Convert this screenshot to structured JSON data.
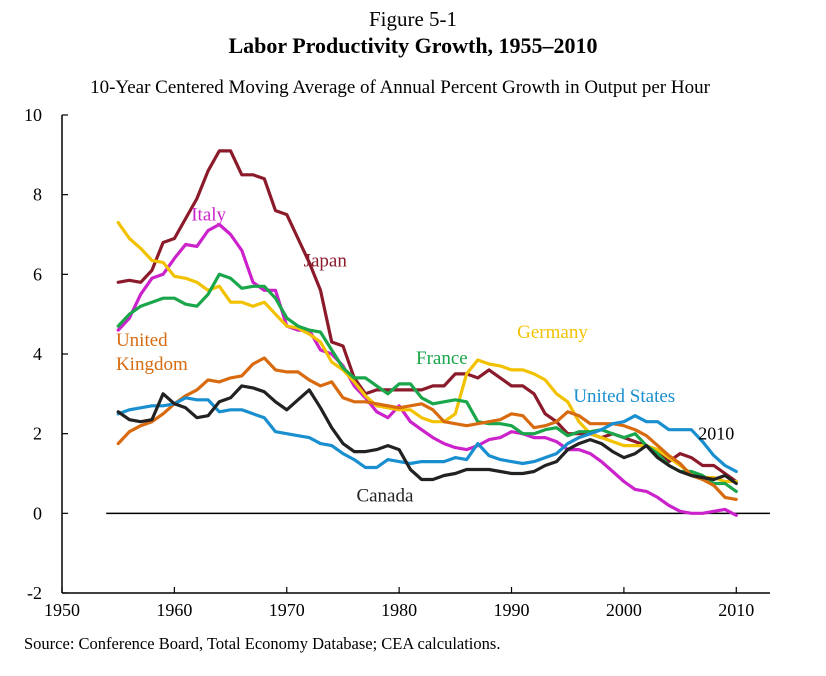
{
  "figure_label": "Figure 5-1",
  "title": "Labor Productivity Growth, 1955–2010",
  "subtitle": "10-Year Centered Moving Average of Annual Percent Growth in Output per Hour",
  "source": "Source: Conference Board, Total Economy Database; CEA calculations.",
  "chart_data": {
    "type": "line",
    "title": "Labor Productivity Growth, 1955–2010",
    "subtitle": "10-Year Centered Moving Average of Annual Percent Growth in Output per Hour",
    "xlabel": "",
    "ylabel": "",
    "xlim": [
      1950,
      2013
    ],
    "ylim": [
      -2,
      10
    ],
    "xticks": [
      1950,
      1960,
      1970,
      1980,
      1990,
      2000,
      2010
    ],
    "yticks": [
      -2,
      0,
      2,
      4,
      6,
      8,
      10
    ],
    "grid": false,
    "legend": "inline labels",
    "annotations": [
      {
        "text": "2010",
        "x": 2010,
        "y": 2.0
      }
    ],
    "series": [
      {
        "name": "Japan",
        "color": "#8b1a2b",
        "label_lines": [
          "Japan"
        ],
        "label_at": [
          1971.5,
          6.2
        ],
        "x": [
          1955,
          1956,
          1957,
          1958,
          1959,
          1960,
          1961,
          1962,
          1963,
          1964,
          1965,
          1966,
          1967,
          1968,
          1969,
          1970,
          1971,
          1972,
          1973,
          1974,
          1975,
          1976,
          1977,
          1978,
          1979,
          1980,
          1981,
          1982,
          1983,
          1984,
          1985,
          1986,
          1987,
          1988,
          1989,
          1990,
          1991,
          1992,
          1993,
          1994,
          1995,
          1996,
          1997,
          1998,
          1999,
          2000,
          2001,
          2002,
          2003,
          2004,
          2005,
          2006,
          2007,
          2008,
          2009,
          2010
        ],
        "values": [
          5.8,
          5.85,
          5.8,
          6.1,
          6.8,
          6.9,
          7.4,
          7.9,
          8.6,
          9.1,
          9.1,
          8.5,
          8.5,
          8.4,
          7.6,
          7.5,
          6.9,
          6.3,
          5.6,
          4.3,
          4.2,
          3.4,
          3.0,
          3.1,
          3.1,
          3.1,
          3.1,
          3.1,
          3.2,
          3.2,
          3.5,
          3.5,
          3.4,
          3.6,
          3.4,
          3.2,
          3.2,
          3.0,
          2.5,
          2.3,
          2.0,
          2.0,
          2.0,
          1.9,
          2.0,
          1.9,
          1.8,
          1.7,
          1.5,
          1.3,
          1.5,
          1.4,
          1.2,
          1.2,
          1.0,
          0.8
        ]
      },
      {
        "name": "Italy",
        "color": "#cc22cc",
        "label_lines": [
          "Italy"
        ],
        "label_at": [
          1961.5,
          7.35
        ],
        "x": [
          1955,
          1956,
          1957,
          1958,
          1959,
          1960,
          1961,
          1962,
          1963,
          1964,
          1965,
          1966,
          1967,
          1968,
          1969,
          1970,
          1971,
          1972,
          1973,
          1974,
          1975,
          1976,
          1977,
          1978,
          1979,
          1980,
          1981,
          1982,
          1983,
          1984,
          1985,
          1986,
          1987,
          1988,
          1989,
          1990,
          1991,
          1992,
          1993,
          1994,
          1995,
          1996,
          1997,
          1998,
          1999,
          2000,
          2001,
          2002,
          2003,
          2004,
          2005,
          2006,
          2007,
          2008,
          2009,
          2010
        ],
        "values": [
          4.6,
          4.9,
          5.5,
          5.9,
          6.0,
          6.4,
          6.75,
          6.7,
          7.1,
          7.25,
          7.0,
          6.6,
          5.8,
          5.6,
          5.6,
          4.7,
          4.6,
          4.6,
          4.1,
          4.0,
          3.7,
          3.2,
          2.9,
          2.55,
          2.4,
          2.7,
          2.3,
          2.1,
          1.9,
          1.75,
          1.65,
          1.6,
          1.7,
          1.85,
          1.9,
          2.05,
          2.0,
          1.9,
          1.9,
          1.8,
          1.6,
          1.6,
          1.5,
          1.3,
          1.05,
          0.8,
          0.6,
          0.55,
          0.4,
          0.2,
          0.05,
          0.0,
          0.0,
          0.05,
          0.1,
          -0.05
        ]
      },
      {
        "name": "Germany",
        "color": "#f2c200",
        "label_lines": [
          "Germany"
        ],
        "label_at": [
          1990.5,
          4.4
        ],
        "x": [
          1955,
          1956,
          1957,
          1958,
          1959,
          1960,
          1961,
          1962,
          1963,
          1964,
          1965,
          1966,
          1967,
          1968,
          1969,
          1970,
          1971,
          1972,
          1973,
          1974,
          1975,
          1976,
          1977,
          1978,
          1979,
          1980,
          1981,
          1982,
          1983,
          1984,
          1985,
          1986,
          1987,
          1988,
          1989,
          1990,
          1991,
          1992,
          1993,
          1994,
          1995,
          1996,
          1997,
          1998,
          1999,
          2000,
          2001,
          2002,
          2003,
          2004,
          2005,
          2006,
          2007,
          2008,
          2009,
          2010
        ],
        "values": [
          7.3,
          6.9,
          6.65,
          6.35,
          6.3,
          5.95,
          5.9,
          5.8,
          5.6,
          5.7,
          5.3,
          5.3,
          5.2,
          5.3,
          5.0,
          4.7,
          4.65,
          4.5,
          4.3,
          3.8,
          3.6,
          3.3,
          2.95,
          2.7,
          2.65,
          2.6,
          2.6,
          2.4,
          2.3,
          2.3,
          2.5,
          3.5,
          3.85,
          3.75,
          3.7,
          3.6,
          3.6,
          3.5,
          3.35,
          3.0,
          2.8,
          2.3,
          2.0,
          1.9,
          1.8,
          1.7,
          1.7,
          1.7,
          1.6,
          1.4,
          1.2,
          1.0,
          0.9,
          0.9,
          0.8,
          0.8
        ]
      },
      {
        "name": "France",
        "color": "#1aa64a",
        "label_lines": [
          "France"
        ],
        "label_at": [
          1981.5,
          3.75
        ],
        "x": [
          1955,
          1956,
          1957,
          1958,
          1959,
          1960,
          1961,
          1962,
          1963,
          1964,
          1965,
          1966,
          1967,
          1968,
          1969,
          1970,
          1971,
          1972,
          1973,
          1974,
          1975,
          1976,
          1977,
          1978,
          1979,
          1980,
          1981,
          1982,
          1983,
          1984,
          1985,
          1986,
          1987,
          1988,
          1989,
          1990,
          1991,
          1992,
          1993,
          1994,
          1995,
          1996,
          1997,
          1998,
          1999,
          2000,
          2001,
          2002,
          2003,
          2004,
          2005,
          2006,
          2007,
          2008,
          2009,
          2010
        ],
        "values": [
          4.7,
          5.0,
          5.2,
          5.3,
          5.4,
          5.4,
          5.25,
          5.2,
          5.5,
          6.0,
          5.9,
          5.65,
          5.7,
          5.7,
          5.4,
          4.9,
          4.7,
          4.6,
          4.55,
          4.1,
          3.65,
          3.4,
          3.4,
          3.2,
          3.0,
          3.25,
          3.25,
          2.9,
          2.75,
          2.8,
          2.85,
          2.8,
          2.3,
          2.25,
          2.25,
          2.2,
          2.0,
          2.0,
          2.1,
          2.15,
          1.95,
          2.05,
          2.05,
          2.1,
          2.0,
          1.9,
          2.0,
          1.7,
          1.5,
          1.2,
          1.05,
          1.05,
          0.95,
          0.75,
          0.75,
          0.55
        ]
      },
      {
        "name": "United Kingdom",
        "color": "#d86b10",
        "label_lines": [
          "United",
          "Kingdom"
        ],
        "label_at": [
          1954.8,
          4.2
        ],
        "x": [
          1955,
          1956,
          1957,
          1958,
          1959,
          1960,
          1961,
          1962,
          1963,
          1964,
          1965,
          1966,
          1967,
          1968,
          1969,
          1970,
          1971,
          1972,
          1973,
          1974,
          1975,
          1976,
          1977,
          1978,
          1979,
          1980,
          1981,
          1982,
          1983,
          1984,
          1985,
          1986,
          1987,
          1988,
          1989,
          1990,
          1991,
          1992,
          1993,
          1994,
          1995,
          1996,
          1997,
          1998,
          1999,
          2000,
          2001,
          2002,
          2003,
          2004,
          2005,
          2006,
          2007,
          2008,
          2009,
          2010
        ],
        "values": [
          1.75,
          2.05,
          2.2,
          2.3,
          2.5,
          2.75,
          2.95,
          3.1,
          3.35,
          3.3,
          3.4,
          3.45,
          3.75,
          3.9,
          3.6,
          3.55,
          3.55,
          3.35,
          3.2,
          3.3,
          2.9,
          2.8,
          2.8,
          2.75,
          2.7,
          2.65,
          2.7,
          2.75,
          2.6,
          2.3,
          2.25,
          2.2,
          2.25,
          2.3,
          2.35,
          2.5,
          2.45,
          2.15,
          2.2,
          2.3,
          2.55,
          2.45,
          2.25,
          2.25,
          2.25,
          2.2,
          2.1,
          1.95,
          1.7,
          1.45,
          1.25,
          0.95,
          0.85,
          0.7,
          0.4,
          0.35
        ]
      },
      {
        "name": "United States",
        "color": "#1a8fd0",
        "label_lines": [
          "United States"
        ],
        "label_at": [
          1995.5,
          2.8
        ],
        "x": [
          1955,
          1956,
          1957,
          1958,
          1959,
          1960,
          1961,
          1962,
          1963,
          1964,
          1965,
          1966,
          1967,
          1968,
          1969,
          1970,
          1971,
          1972,
          1973,
          1974,
          1975,
          1976,
          1977,
          1978,
          1979,
          1980,
          1981,
          1982,
          1983,
          1984,
          1985,
          1986,
          1987,
          1988,
          1989,
          1990,
          1991,
          1992,
          1993,
          1994,
          1995,
          1996,
          1997,
          1998,
          1999,
          2000,
          2001,
          2002,
          2003,
          2004,
          2005,
          2006,
          2007,
          2008,
          2009,
          2010
        ],
        "values": [
          2.5,
          2.6,
          2.65,
          2.7,
          2.7,
          2.75,
          2.9,
          2.85,
          2.85,
          2.55,
          2.6,
          2.6,
          2.5,
          2.4,
          2.05,
          2.0,
          1.95,
          1.9,
          1.75,
          1.7,
          1.5,
          1.35,
          1.15,
          1.15,
          1.35,
          1.3,
          1.25,
          1.3,
          1.3,
          1.3,
          1.4,
          1.35,
          1.75,
          1.45,
          1.35,
          1.3,
          1.25,
          1.3,
          1.4,
          1.5,
          1.75,
          1.9,
          2.0,
          2.1,
          2.25,
          2.3,
          2.45,
          2.3,
          2.3,
          2.1,
          2.1,
          2.1,
          1.8,
          1.45,
          1.2,
          1.05
        ]
      },
      {
        "name": "Canada",
        "color": "#222222",
        "label_lines": [
          "Canada"
        ],
        "label_at": [
          1976.2,
          0.3
        ],
        "x": [
          1955,
          1956,
          1957,
          1958,
          1959,
          1960,
          1961,
          1962,
          1963,
          1964,
          1965,
          1966,
          1967,
          1968,
          1969,
          1970,
          1971,
          1972,
          1973,
          1974,
          1975,
          1976,
          1977,
          1978,
          1979,
          1980,
          1981,
          1982,
          1983,
          1984,
          1985,
          1986,
          1987,
          1988,
          1989,
          1990,
          1991,
          1992,
          1993,
          1994,
          1995,
          1996,
          1997,
          1998,
          1999,
          2000,
          2001,
          2002,
          2003,
          2004,
          2005,
          2006,
          2007,
          2008,
          2009,
          2010
        ],
        "values": [
          2.55,
          2.35,
          2.3,
          2.35,
          3.0,
          2.75,
          2.65,
          2.4,
          2.45,
          2.8,
          2.9,
          3.2,
          3.15,
          3.05,
          2.8,
          2.6,
          2.85,
          3.1,
          2.65,
          2.15,
          1.75,
          1.55,
          1.55,
          1.6,
          1.7,
          1.6,
          1.1,
          0.85,
          0.85,
          0.95,
          1.0,
          1.1,
          1.1,
          1.1,
          1.05,
          1.0,
          1.0,
          1.05,
          1.2,
          1.3,
          1.6,
          1.75,
          1.85,
          1.75,
          1.55,
          1.4,
          1.5,
          1.7,
          1.4,
          1.2,
          1.05,
          0.95,
          0.9,
          0.85,
          0.95,
          0.75
        ]
      }
    ]
  }
}
